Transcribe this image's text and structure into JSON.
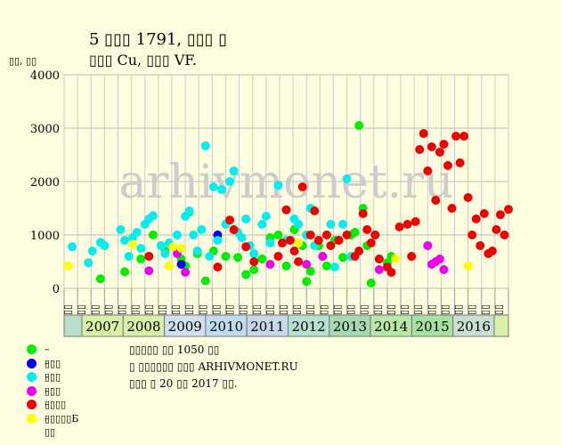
{
  "header": {
    "title": "5 ▯▯▯ 1791, ▯▯▯ ▯",
    "subtitle": "▯▯▯ Cu, ▯▯▯ VF.",
    "ylabel": "▯▯, ▯▯"
  },
  "notes": [
    "▯▯▯▯▯ ▯▯ 1050 ▯▯",
    "▯ ▯▯▯▯▯▯ ▯▯▯ ARHIVMONET.RU",
    "▯▯▯ ▯ 20 ▯▯ 2017 ▯▯."
  ],
  "watermark": "arhivmonet.ru",
  "legend": [
    {
      "label": "– ▯▯▯",
      "color": "#00ee00"
    },
    {
      "label": "– ▯▯▯",
      "color": "#0000ee"
    },
    {
      "label": "– ▯▯▯",
      "color": "#00eeee"
    },
    {
      "label": "– ▯▯▯▯",
      "color": "#ee00ee"
    },
    {
      "label": "– ▯▯▯▯▯Б",
      "color": "#ee0000"
    },
    {
      "label": "– ▯▯",
      "color": "#ffff00"
    }
  ],
  "chart_data": {
    "type": "scatter",
    "ylim": [
      0,
      4000
    ],
    "yticks": [
      0,
      1000,
      2000,
      3000,
      4000
    ],
    "years": [
      "2007",
      "2008",
      "2009",
      "2010",
      "2011",
      "2012",
      "2013",
      "2014",
      "2015",
      "2016"
    ],
    "quarter_labels": [
      "▯▯",
      "▯▯",
      "▯▯",
      "▯▯"
    ],
    "grid": true,
    "series": [
      {
        "name": "– ▯▯▯",
        "color": "#00ee00",
        "points": [
          [
            2007.4,
            180
          ],
          [
            2008.0,
            310
          ],
          [
            2008.4,
            550
          ],
          [
            2008.6,
            600
          ],
          [
            2008.7,
            1000
          ],
          [
            2009.0,
            700
          ],
          [
            2009.4,
            550
          ],
          [
            2009.5,
            420
          ],
          [
            2009.6,
            1430
          ],
          [
            2009.8,
            650
          ],
          [
            2010.0,
            140
          ],
          [
            2010.2,
            700
          ],
          [
            2010.5,
            600
          ],
          [
            2010.8,
            580
          ],
          [
            2011.0,
            260
          ],
          [
            2011.2,
            350
          ],
          [
            2011.4,
            550
          ],
          [
            2011.6,
            950
          ],
          [
            2011.8,
            1000
          ],
          [
            2012.0,
            420
          ],
          [
            2012.2,
            1100
          ],
          [
            2012.4,
            800
          ],
          [
            2012.5,
            130
          ],
          [
            2012.6,
            320
          ],
          [
            2012.8,
            800
          ],
          [
            2013.0,
            420
          ],
          [
            2013.2,
            900
          ],
          [
            2013.4,
            580
          ],
          [
            2013.6,
            1000
          ],
          [
            2013.7,
            1050
          ],
          [
            2013.8,
            3050
          ],
          [
            2013.9,
            1500
          ],
          [
            2014.0,
            800
          ],
          [
            2014.1,
            100
          ],
          [
            2014.2,
            1000
          ],
          [
            2014.3,
            550
          ],
          [
            2014.5,
            480
          ],
          [
            2014.6,
            600
          ]
        ]
      },
      {
        "name": "– ▯▯▯",
        "color": "#0000ee",
        "points": [
          [
            2009.4,
            450
          ],
          [
            2010.3,
            1000
          ]
        ]
      },
      {
        "name": "– ▯▯▯",
        "color": "#00eeee",
        "points": [
          [
            2006.7,
            780
          ],
          [
            2007.1,
            480
          ],
          [
            2007.2,
            700
          ],
          [
            2007.4,
            860
          ],
          [
            2007.5,
            800
          ],
          [
            2007.9,
            1100
          ],
          [
            2008.0,
            900
          ],
          [
            2008.1,
            600
          ],
          [
            2008.2,
            950
          ],
          [
            2008.3,
            1050
          ],
          [
            2008.4,
            750
          ],
          [
            2008.5,
            1200
          ],
          [
            2008.6,
            1300
          ],
          [
            2008.7,
            1360
          ],
          [
            2008.9,
            800
          ],
          [
            2009.0,
            650
          ],
          [
            2009.1,
            850
          ],
          [
            2009.3,
            1000
          ],
          [
            2009.5,
            1350
          ],
          [
            2009.6,
            1450
          ],
          [
            2009.7,
            1000
          ],
          [
            2009.8,
            700
          ],
          [
            2009.9,
            1100
          ],
          [
            2010.0,
            2670
          ],
          [
            2010.1,
            600
          ],
          [
            2010.2,
            1900
          ],
          [
            2010.3,
            900
          ],
          [
            2010.4,
            1850
          ],
          [
            2010.5,
            1200
          ],
          [
            2010.6,
            2000
          ],
          [
            2010.7,
            2200
          ],
          [
            2010.8,
            1050
          ],
          [
            2010.9,
            950
          ],
          [
            2011.0,
            1300
          ],
          [
            2011.1,
            800
          ],
          [
            2011.2,
            650
          ],
          [
            2011.4,
            1200
          ],
          [
            2011.5,
            1350
          ],
          [
            2011.6,
            850
          ],
          [
            2011.8,
            1930
          ],
          [
            2012.0,
            900
          ],
          [
            2012.2,
            1300
          ],
          [
            2012.3,
            1200
          ],
          [
            2012.5,
            1000
          ],
          [
            2012.6,
            1500
          ],
          [
            2012.7,
            800
          ],
          [
            2012.9,
            600
          ],
          [
            2013.1,
            1200
          ],
          [
            2013.2,
            400
          ],
          [
            2013.4,
            1200
          ],
          [
            2013.5,
            2050
          ],
          [
            2013.6,
            600
          ]
        ]
      },
      {
        "name": "– ▯▯▯▯",
        "color": "#ee00ee",
        "points": [
          [
            2008.6,
            330
          ],
          [
            2009.3,
            650
          ],
          [
            2009.5,
            300
          ],
          [
            2011.6,
            450
          ],
          [
            2012.5,
            450
          ],
          [
            2012.9,
            600
          ],
          [
            2014.3,
            350
          ],
          [
            2015.5,
            800
          ],
          [
            2015.6,
            450
          ],
          [
            2015.7,
            500
          ],
          [
            2015.8,
            550
          ],
          [
            2015.9,
            350
          ]
        ]
      },
      {
        "name": "– ▯▯▯▯▯Б",
        "color": "#ee0000",
        "points": [
          [
            2008.6,
            600
          ],
          [
            2010.3,
            400
          ],
          [
            2010.6,
            1280
          ],
          [
            2010.7,
            1100
          ],
          [
            2011.0,
            780
          ],
          [
            2011.2,
            500
          ],
          [
            2011.8,
            600
          ],
          [
            2011.9,
            850
          ],
          [
            2012.0,
            1470
          ],
          [
            2012.1,
            900
          ],
          [
            2012.2,
            700
          ],
          [
            2012.3,
            500
          ],
          [
            2012.4,
            1900
          ],
          [
            2012.6,
            1000
          ],
          [
            2012.7,
            1450
          ],
          [
            2012.8,
            900
          ],
          [
            2013.0,
            1000
          ],
          [
            2013.1,
            800
          ],
          [
            2013.3,
            900
          ],
          [
            2013.5,
            1000
          ],
          [
            2013.7,
            600
          ],
          [
            2013.8,
            700
          ],
          [
            2013.9,
            1400
          ],
          [
            2014.0,
            1100
          ],
          [
            2014.1,
            850
          ],
          [
            2014.2,
            1000
          ],
          [
            2014.3,
            550
          ],
          [
            2014.5,
            400
          ],
          [
            2014.6,
            300
          ],
          [
            2014.8,
            1150
          ],
          [
            2015.0,
            1200
          ],
          [
            2015.1,
            600
          ],
          [
            2015.2,
            1250
          ],
          [
            2015.3,
            2600
          ],
          [
            2015.4,
            2900
          ],
          [
            2015.5,
            2200
          ],
          [
            2015.6,
            2650
          ],
          [
            2015.7,
            1650
          ],
          [
            2015.8,
            2550
          ],
          [
            2015.9,
            2700
          ],
          [
            2016.0,
            2300
          ],
          [
            2016.1,
            1500
          ],
          [
            2016.2,
            2850
          ],
          [
            2016.3,
            2350
          ],
          [
            2016.4,
            2850
          ],
          [
            2016.5,
            1700
          ],
          [
            2016.6,
            1000
          ],
          [
            2016.7,
            1300
          ],
          [
            2016.8,
            800
          ],
          [
            2016.9,
            1400
          ],
          [
            2017.0,
            650
          ],
          [
            2017.1,
            700
          ],
          [
            2017.2,
            1100
          ],
          [
            2017.3,
            1380
          ],
          [
            2017.4,
            1000
          ],
          [
            2017.5,
            1480
          ]
        ]
      },
      {
        "name": "– ▯▯",
        "color": "#ffff00",
        "points": [
          [
            2006.6,
            420
          ],
          [
            2008.2,
            820
          ],
          [
            2009.1,
            420
          ],
          [
            2009.2,
            780
          ],
          [
            2009.4,
            750
          ],
          [
            2012.3,
            850
          ],
          [
            2014.7,
            560
          ],
          [
            2016.5,
            420
          ]
        ]
      }
    ]
  }
}
